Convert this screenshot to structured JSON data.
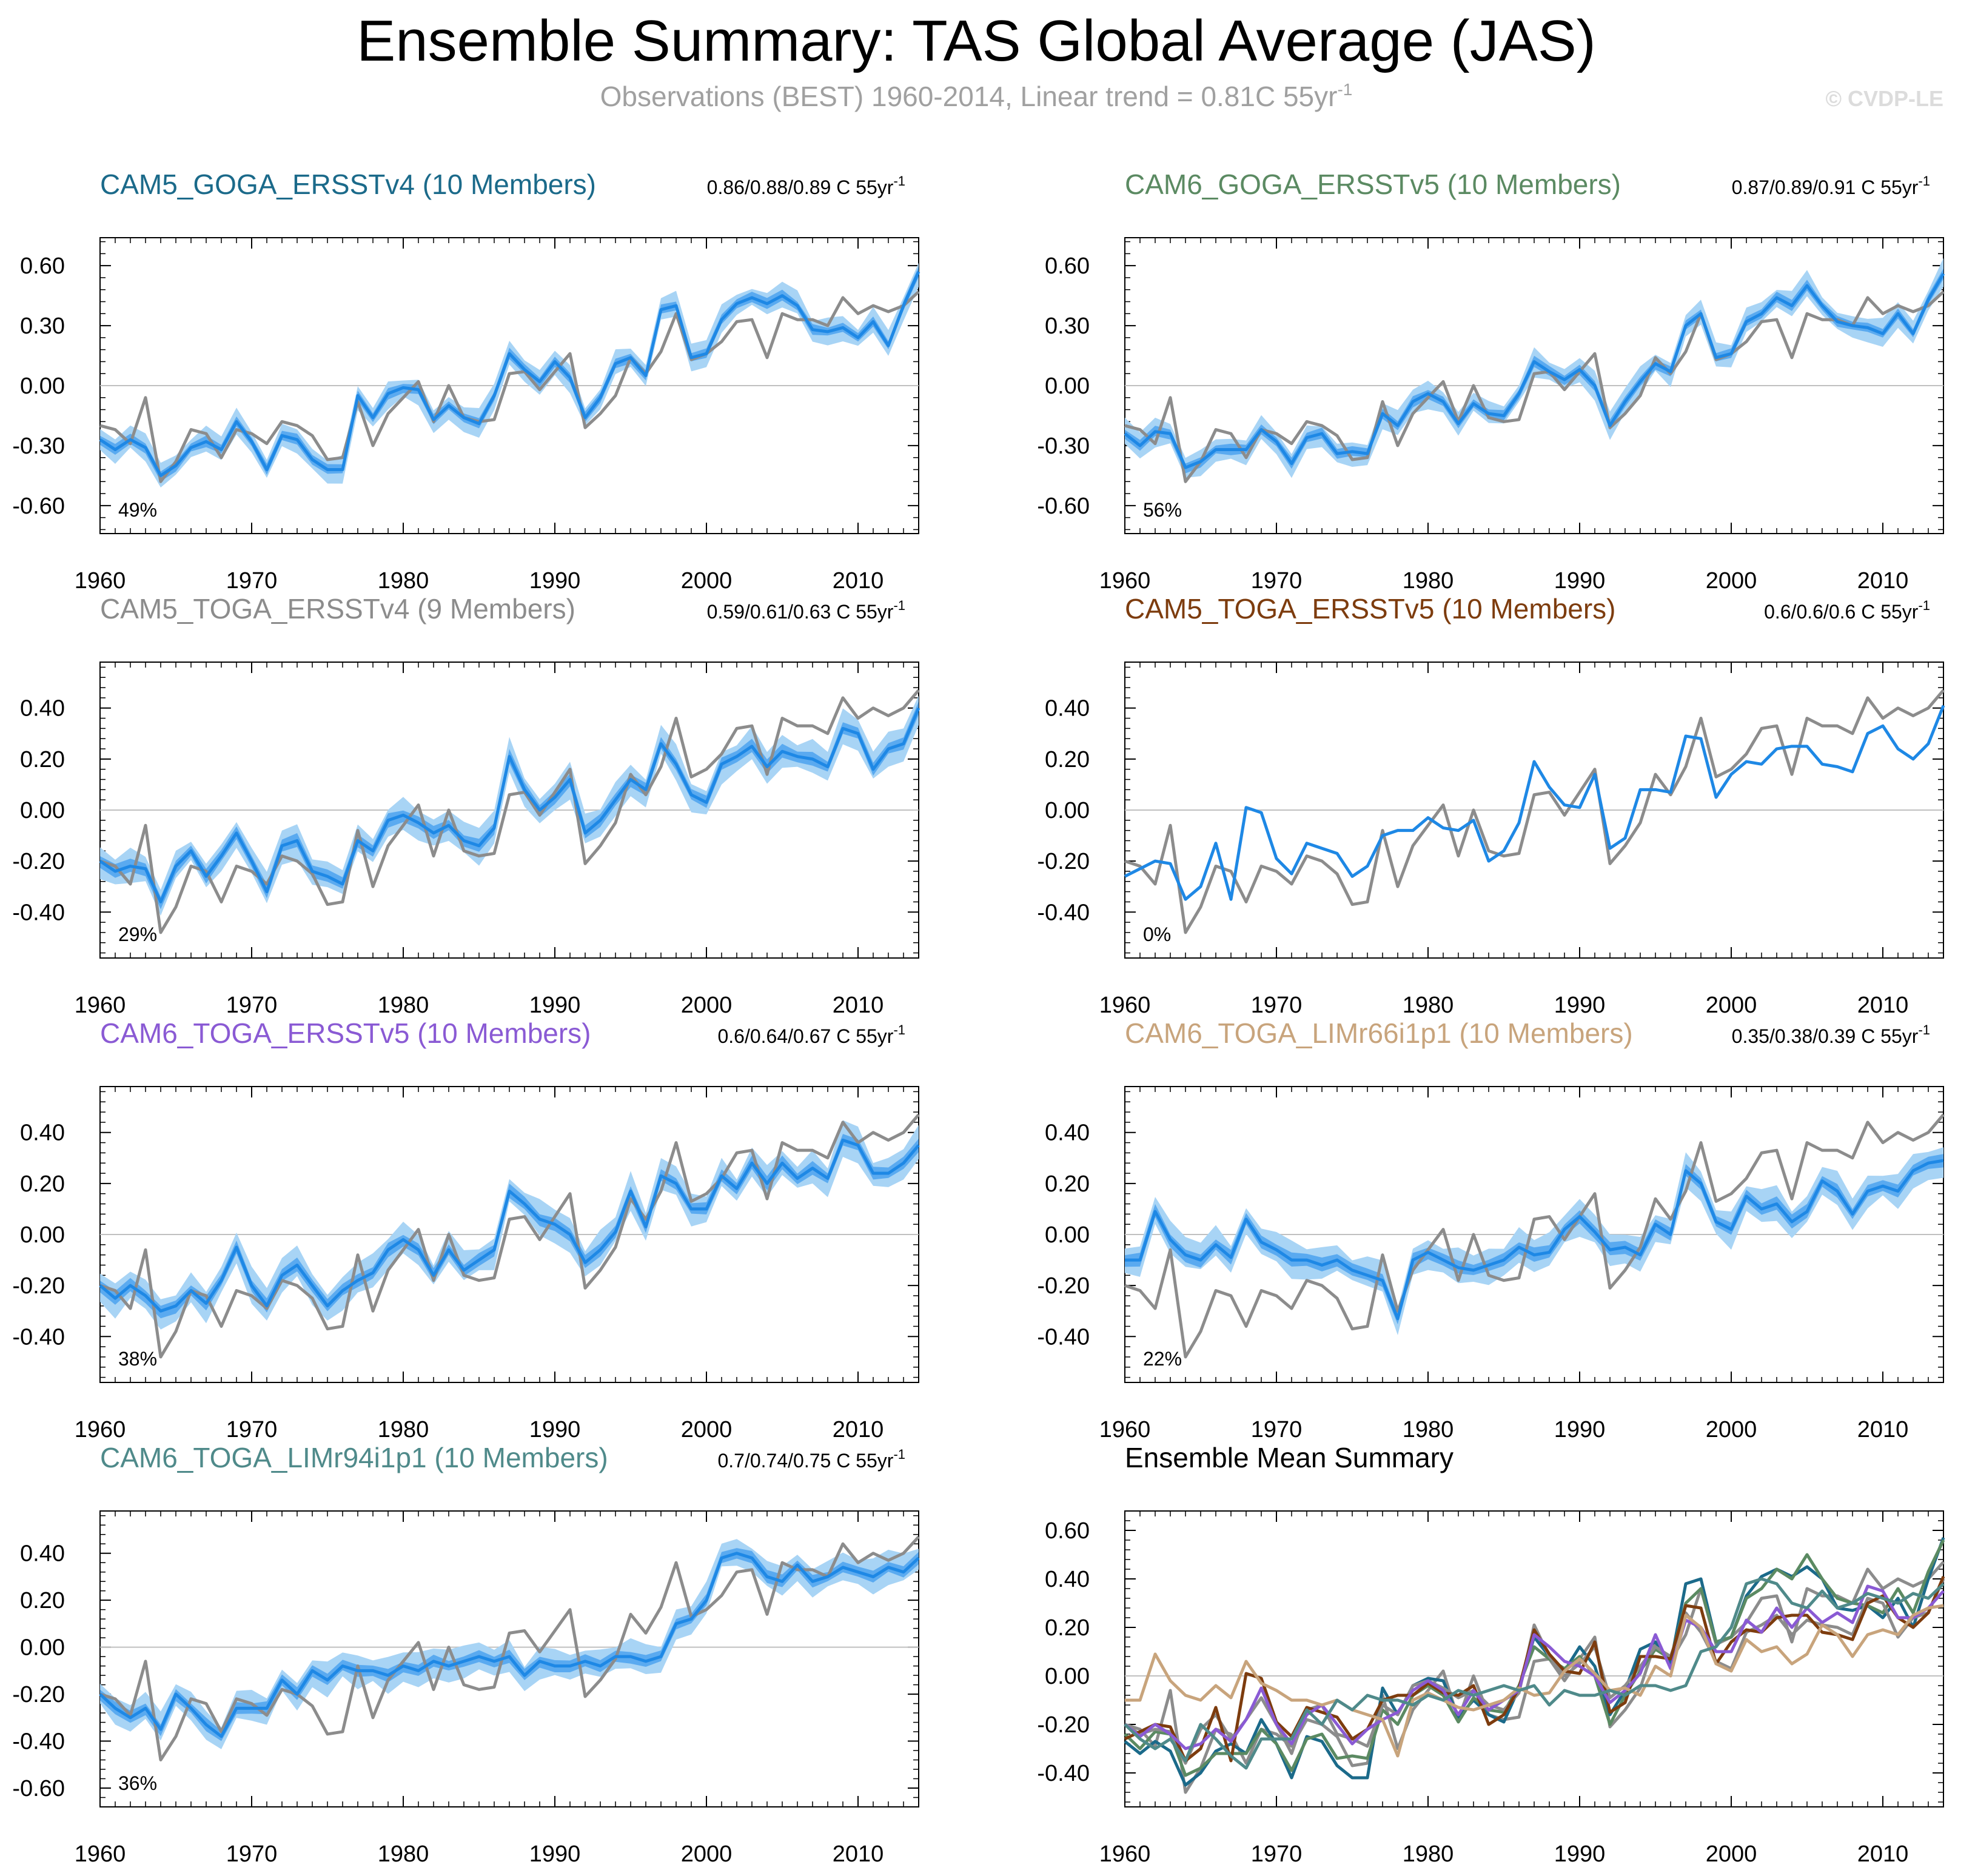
{
  "title": "Ensemble Summary: TAS Global Average (JAS)",
  "subtitle": {
    "text": "Observations (BEST) 1960-2014, Linear trend = 0.81C 55yr",
    "superscript": "-1"
  },
  "copyright": "© CVDP-LE",
  "colors": {
    "observation_line": "#8c8c8c",
    "ensemble_mean_line": "#1e88e5",
    "spread_outer": "#a8d4f5",
    "spread_inner": "#5aaaf0",
    "zero_line": "#c0c0c0"
  },
  "chart_data": [
    {
      "type": "line",
      "title": "CAM5_GOGA_ERSSTv4 (10 Members)",
      "title_color": "#1b6a8a",
      "trend_text": "0.86/0.88/0.89 C 55yr",
      "trend_superscript": "-1",
      "percent_label": "49%",
      "x_range": [
        1960,
        2014
      ],
      "ylim": [
        -0.74,
        0.74
      ],
      "y_ticks": [
        -0.6,
        -0.3,
        0.0,
        0.3,
        0.6
      ],
      "y_tick_labels": [
        "-0.60",
        "-0.30",
        "0.00",
        "0.30",
        "0.60"
      ],
      "x_ticks": [
        1960,
        1970,
        1980,
        1990,
        2000,
        2010
      ],
      "series": [
        {
          "name": "Ensemble mean",
          "color": "#1e88e5",
          "values": [
            -0.27,
            -0.32,
            -0.27,
            -0.31,
            -0.45,
            -0.4,
            -0.31,
            -0.28,
            -0.32,
            -0.18,
            -0.28,
            -0.42,
            -0.25,
            -0.27,
            -0.37,
            -0.42,
            -0.42,
            -0.05,
            -0.16,
            -0.04,
            -0.01,
            -0.02,
            -0.17,
            -0.1,
            -0.16,
            -0.19,
            -0.05,
            0.16,
            0.08,
            0.02,
            0.12,
            0.04,
            -0.16,
            -0.06,
            0.11,
            0.14,
            0.05,
            0.38,
            0.4,
            0.14,
            0.16,
            0.33,
            0.41,
            0.44,
            0.41,
            0.45,
            0.4,
            0.28,
            0.27,
            0.29,
            0.24,
            0.32,
            0.2,
            0.4,
            0.57
          ]
        }
      ],
      "spread": true,
      "show_zero_line": true
    },
    {
      "type": "line",
      "title": "CAM6_GOGA_ERSSTv5 (10 Members)",
      "title_color": "#5b8a62",
      "trend_text": "0.87/0.89/0.91 C 55yr",
      "trend_superscript": "-1",
      "percent_label": "56%",
      "x_range": [
        1960,
        2014
      ],
      "ylim": [
        -0.74,
        0.74
      ],
      "y_ticks": [
        -0.6,
        -0.3,
        0.0,
        0.3,
        0.6
      ],
      "y_tick_labels": [
        "-0.60",
        "-0.30",
        "0.00",
        "0.30",
        "0.60"
      ],
      "x_ticks": [
        1960,
        1970,
        1980,
        1990,
        2000,
        2010
      ],
      "series": [
        {
          "name": "Ensemble mean",
          "color": "#1e88e5",
          "values": [
            -0.24,
            -0.3,
            -0.23,
            -0.24,
            -0.41,
            -0.38,
            -0.32,
            -0.32,
            -0.32,
            -0.22,
            -0.28,
            -0.39,
            -0.26,
            -0.24,
            -0.34,
            -0.33,
            -0.34,
            -0.14,
            -0.2,
            -0.08,
            -0.04,
            -0.08,
            -0.19,
            -0.09,
            -0.14,
            -0.15,
            -0.04,
            0.12,
            0.07,
            0.03,
            0.08,
            0.0,
            -0.2,
            -0.08,
            0.02,
            0.11,
            0.07,
            0.3,
            0.36,
            0.14,
            0.16,
            0.32,
            0.36,
            0.44,
            0.4,
            0.5,
            0.4,
            0.32,
            0.3,
            0.29,
            0.26,
            0.36,
            0.26,
            0.43,
            0.56
          ]
        }
      ],
      "spread": true,
      "show_zero_line": true
    },
    {
      "type": "line",
      "title": "CAM5_TOGA_ERSSTv4 (9 Members)",
      "title_color": "#8c8c8c",
      "trend_text": "0.59/0.61/0.63 C 55yr",
      "trend_superscript": "-1",
      "percent_label": "29%",
      "x_range": [
        1960,
        2014
      ],
      "ylim": [
        -0.58,
        0.58
      ],
      "y_ticks": [
        -0.4,
        -0.2,
        0.0,
        0.2,
        0.4
      ],
      "y_tick_labels": [
        "-0.40",
        "-0.20",
        "0.00",
        "0.20",
        "0.40"
      ],
      "x_ticks": [
        1960,
        1970,
        1980,
        1990,
        2000,
        2010
      ],
      "series": [
        {
          "name": "Ensemble mean",
          "color": "#1e88e5",
          "values": [
            -0.2,
            -0.24,
            -0.22,
            -0.23,
            -0.36,
            -0.22,
            -0.16,
            -0.26,
            -0.18,
            -0.09,
            -0.2,
            -0.32,
            -0.14,
            -0.12,
            -0.24,
            -0.26,
            -0.29,
            -0.12,
            -0.16,
            -0.04,
            -0.02,
            -0.05,
            -0.09,
            -0.06,
            -0.12,
            -0.14,
            -0.07,
            0.21,
            0.08,
            0.0,
            0.05,
            0.12,
            -0.09,
            -0.04,
            0.04,
            0.12,
            0.08,
            0.26,
            0.18,
            0.06,
            0.03,
            0.18,
            0.21,
            0.25,
            0.17,
            0.23,
            0.21,
            0.2,
            0.17,
            0.32,
            0.3,
            0.16,
            0.24,
            0.26,
            0.4
          ]
        }
      ],
      "spread": true,
      "show_zero_line": true
    },
    {
      "type": "line",
      "title": "CAM5_TOGA_ERSSTv5 (10 Members)",
      "title_color": "#7d3c0e",
      "trend_text": "0.6/0.6/0.6 C 55yr",
      "trend_superscript": "-1",
      "percent_label": "0%",
      "x_range": [
        1960,
        2014
      ],
      "ylim": [
        -0.58,
        0.58
      ],
      "y_ticks": [
        -0.4,
        -0.2,
        0.0,
        0.2,
        0.4
      ],
      "y_tick_labels": [
        "-0.40",
        "-0.20",
        "0.00",
        "0.20",
        "0.40"
      ],
      "x_ticks": [
        1960,
        1970,
        1980,
        1990,
        2000,
        2010
      ],
      "series": [
        {
          "name": "Ensemble mean",
          "color": "#1e88e5",
          "values": [
            -0.26,
            -0.23,
            -0.2,
            -0.21,
            -0.35,
            -0.3,
            -0.13,
            -0.35,
            0.01,
            -0.01,
            -0.19,
            -0.25,
            -0.13,
            -0.15,
            -0.17,
            -0.26,
            -0.22,
            -0.1,
            -0.08,
            -0.08,
            -0.03,
            -0.07,
            -0.08,
            -0.04,
            -0.2,
            -0.16,
            -0.05,
            0.19,
            0.09,
            0.02,
            0.01,
            0.14,
            -0.15,
            -0.11,
            0.08,
            0.08,
            0.07,
            0.29,
            0.28,
            0.05,
            0.14,
            0.19,
            0.18,
            0.24,
            0.25,
            0.25,
            0.18,
            0.17,
            0.15,
            0.3,
            0.33,
            0.24,
            0.2,
            0.26,
            0.41
          ]
        }
      ],
      "spread": false,
      "show_zero_line": true
    },
    {
      "type": "line",
      "title": "CAM6_TOGA_ERSSTv5 (10 Members)",
      "title_color": "#8a5ad4",
      "trend_text": "0.6/0.64/0.67 C 55yr",
      "trend_superscript": "-1",
      "percent_label": "38%",
      "x_range": [
        1960,
        2014
      ],
      "ylim": [
        -0.58,
        0.58
      ],
      "y_ticks": [
        -0.4,
        -0.2,
        0.0,
        0.2,
        0.4
      ],
      "y_tick_labels": [
        "-0.40",
        "-0.20",
        "0.00",
        "0.20",
        "0.40"
      ],
      "x_ticks": [
        1960,
        1970,
        1980,
        1990,
        2000,
        2010
      ],
      "series": [
        {
          "name": "Ensemble mean",
          "color": "#1e88e5",
          "values": [
            -0.2,
            -0.25,
            -0.2,
            -0.24,
            -0.3,
            -0.28,
            -0.22,
            -0.27,
            -0.18,
            -0.05,
            -0.2,
            -0.28,
            -0.16,
            -0.12,
            -0.2,
            -0.28,
            -0.22,
            -0.18,
            -0.15,
            -0.06,
            -0.02,
            -0.06,
            -0.16,
            -0.06,
            -0.14,
            -0.1,
            -0.06,
            0.17,
            0.12,
            0.06,
            0.04,
            0.0,
            -0.11,
            -0.06,
            0.01,
            0.17,
            0.03,
            0.23,
            0.2,
            0.1,
            0.1,
            0.23,
            0.18,
            0.28,
            0.2,
            0.28,
            0.22,
            0.26,
            0.22,
            0.37,
            0.35,
            0.24,
            0.24,
            0.28,
            0.35
          ]
        }
      ],
      "spread": true,
      "show_zero_line": true
    },
    {
      "type": "line",
      "title": "CAM6_TOGA_LIMr66i1p1 (10 Members)",
      "title_color": "#c8a47c",
      "trend_text": "0.35/0.38/0.39 C 55yr",
      "trend_superscript": "-1",
      "percent_label": "22%",
      "x_range": [
        1960,
        2014
      ],
      "ylim": [
        -0.58,
        0.58
      ],
      "y_ticks": [
        -0.4,
        -0.2,
        0.0,
        0.2,
        0.4
      ],
      "y_tick_labels": [
        "-0.40",
        "-0.20",
        "0.00",
        "0.20",
        "0.40"
      ],
      "x_ticks": [
        1960,
        1970,
        1980,
        1990,
        2000,
        2010
      ],
      "series": [
        {
          "name": "Ensemble mean",
          "color": "#1e88e5",
          "values": [
            -0.1,
            -0.1,
            0.09,
            -0.02,
            -0.08,
            -0.1,
            -0.04,
            -0.09,
            0.06,
            -0.03,
            -0.06,
            -0.1,
            -0.1,
            -0.12,
            -0.1,
            -0.14,
            -0.16,
            -0.18,
            -0.33,
            -0.1,
            -0.07,
            -0.1,
            -0.13,
            -0.14,
            -0.12,
            -0.1,
            -0.05,
            -0.08,
            -0.07,
            0.02,
            0.07,
            0.01,
            -0.06,
            -0.05,
            -0.08,
            0.04,
            0.0,
            0.25,
            0.2,
            0.05,
            0.02,
            0.15,
            0.1,
            0.12,
            0.05,
            0.09,
            0.21,
            0.17,
            0.08,
            0.17,
            0.19,
            0.17,
            0.25,
            0.28,
            0.29
          ]
        }
      ],
      "spread": true,
      "show_zero_line": true
    },
    {
      "type": "line",
      "title": "CAM6_TOGA_LIMr94i1p1 (10 Members)",
      "title_color": "#4f8a8a",
      "trend_text": "0.7/0.74/0.75 C 55yr",
      "trend_superscript": "-1",
      "percent_label": "36%",
      "x_range": [
        1960,
        2014
      ],
      "ylim": [
        -0.68,
        0.58
      ],
      "y_ticks": [
        -0.6,
        -0.4,
        -0.2,
        0.0,
        0.2,
        0.4
      ],
      "y_tick_labels": [
        "-0.60",
        "-0.40",
        "-0.20",
        "0.00",
        "0.20",
        "0.40"
      ],
      "x_ticks": [
        1960,
        1970,
        1980,
        1990,
        2000,
        2010
      ],
      "series": [
        {
          "name": "Ensemble mean",
          "color": "#1e88e5",
          "values": [
            -0.2,
            -0.26,
            -0.3,
            -0.26,
            -0.35,
            -0.2,
            -0.26,
            -0.33,
            -0.38,
            -0.26,
            -0.26,
            -0.26,
            -0.14,
            -0.2,
            -0.1,
            -0.14,
            -0.08,
            -0.1,
            -0.1,
            -0.12,
            -0.08,
            -0.1,
            -0.06,
            -0.08,
            -0.06,
            -0.04,
            -0.06,
            -0.04,
            -0.12,
            -0.06,
            -0.08,
            -0.08,
            -0.06,
            -0.08,
            -0.04,
            -0.04,
            -0.06,
            -0.04,
            0.1,
            0.12,
            0.2,
            0.38,
            0.4,
            0.38,
            0.3,
            0.28,
            0.35,
            0.28,
            0.3,
            0.34,
            0.32,
            0.3,
            0.34,
            0.32,
            0.38
          ]
        }
      ],
      "spread": true,
      "show_zero_line": true
    }
  ],
  "observations": {
    "name": "Observations (BEST)",
    "color": "#8c8c8c",
    "x_start": 1960,
    "values": [
      -0.2,
      -0.22,
      -0.29,
      -0.06,
      -0.48,
      -0.38,
      -0.22,
      -0.24,
      -0.36,
      -0.22,
      -0.24,
      -0.29,
      -0.18,
      -0.2,
      -0.25,
      -0.37,
      -0.36,
      -0.08,
      -0.3,
      -0.14,
      -0.06,
      0.02,
      -0.18,
      0.0,
      -0.16,
      -0.18,
      -0.17,
      0.06,
      0.07,
      -0.02,
      0.07,
      0.16,
      -0.21,
      -0.14,
      -0.05,
      0.14,
      0.06,
      0.17,
      0.36,
      0.13,
      0.16,
      0.22,
      0.32,
      0.33,
      0.14,
      0.36,
      0.33,
      0.33,
      0.3,
      0.44,
      0.36,
      0.4,
      0.37,
      0.4,
      0.47
    ]
  },
  "ensemble_mean_summary": {
    "type": "line",
    "title": "Ensemble Mean Summary",
    "x_range": [
      1960,
      2014
    ],
    "ylim": [
      -0.54,
      0.68
    ],
    "y_ticks": [
      -0.4,
      -0.2,
      0.0,
      0.2,
      0.4,
      0.6
    ],
    "y_tick_labels": [
      "-0.40",
      "-0.20",
      "0.00",
      "0.20",
      "0.40",
      "0.60"
    ],
    "x_ticks": [
      1960,
      1970,
      1980,
      1990,
      2000,
      2010
    ]
  }
}
